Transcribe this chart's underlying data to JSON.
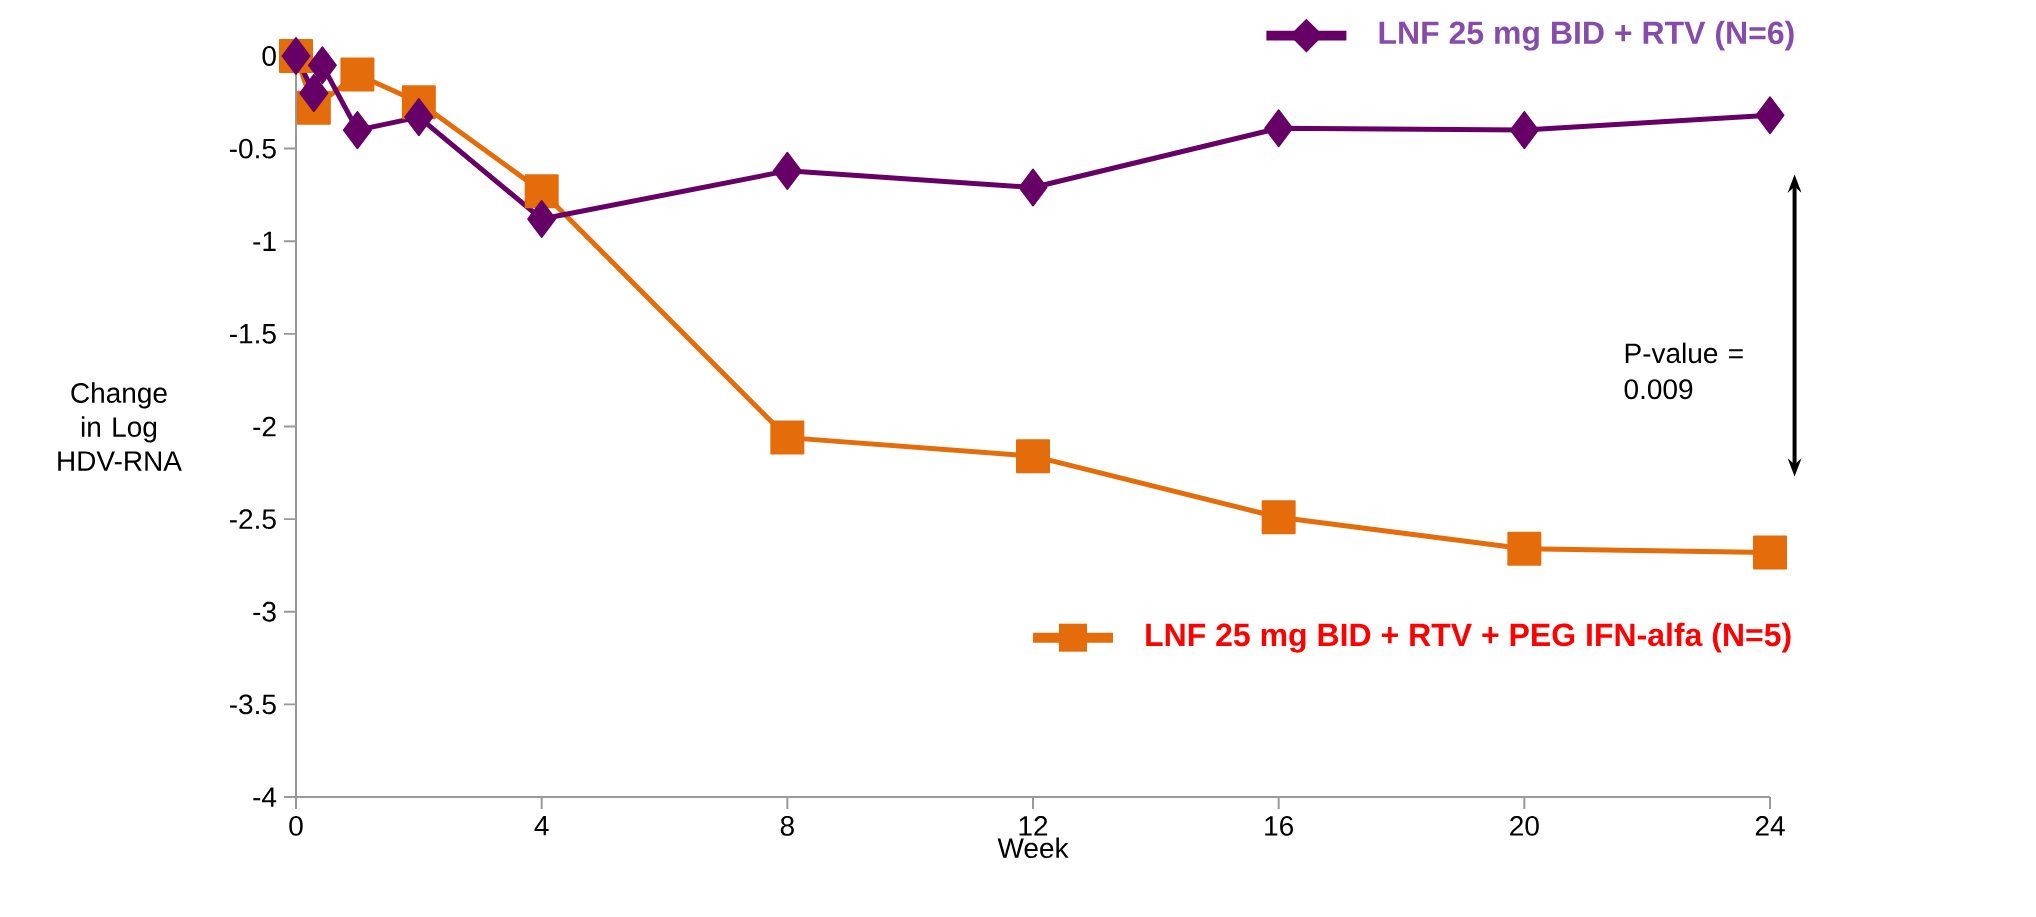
{
  "chart_data": {
    "type": "line",
    "xlabel": "Week",
    "ylabel": "Change in Log HDV-RNA",
    "xlim": [
      0,
      24
    ],
    "ylim": [
      -4,
      0
    ],
    "xticks": [
      0,
      4,
      8,
      12,
      16,
      20,
      24
    ],
    "yticks": [
      0,
      -0.5,
      -1,
      -1.5,
      -2,
      -2.5,
      -3,
      -3.5,
      -4
    ],
    "grid": false,
    "legend": "right",
    "series": [
      {
        "name": "LNF 25 mg BID + RTV (N=6)",
        "color": "#660066",
        "marker": "diamond",
        "x": [
          0,
          0.29,
          0.43,
          1,
          2,
          4,
          8,
          12,
          16,
          20,
          24
        ],
        "values": [
          0,
          -0.2,
          -0.05,
          -0.4,
          -0.33,
          -0.88,
          -0.62,
          -0.71,
          -0.39,
          -0.4,
          -0.32
        ]
      },
      {
        "name": "LNF 25 mg BID + RTV + PEG IFN-alfa (N=5)",
        "color": "#e46c0a",
        "marker": "square",
        "x": [
          0,
          0.29,
          1,
          2,
          4,
          8,
          12,
          16,
          20,
          24
        ],
        "values": [
          0,
          -0.28,
          -0.1,
          -0.25,
          -0.73,
          -2.06,
          -2.16,
          -2.49,
          -2.66,
          -2.68
        ]
      }
    ],
    "annotations": [
      "P-value = 0.009"
    ]
  }
}
